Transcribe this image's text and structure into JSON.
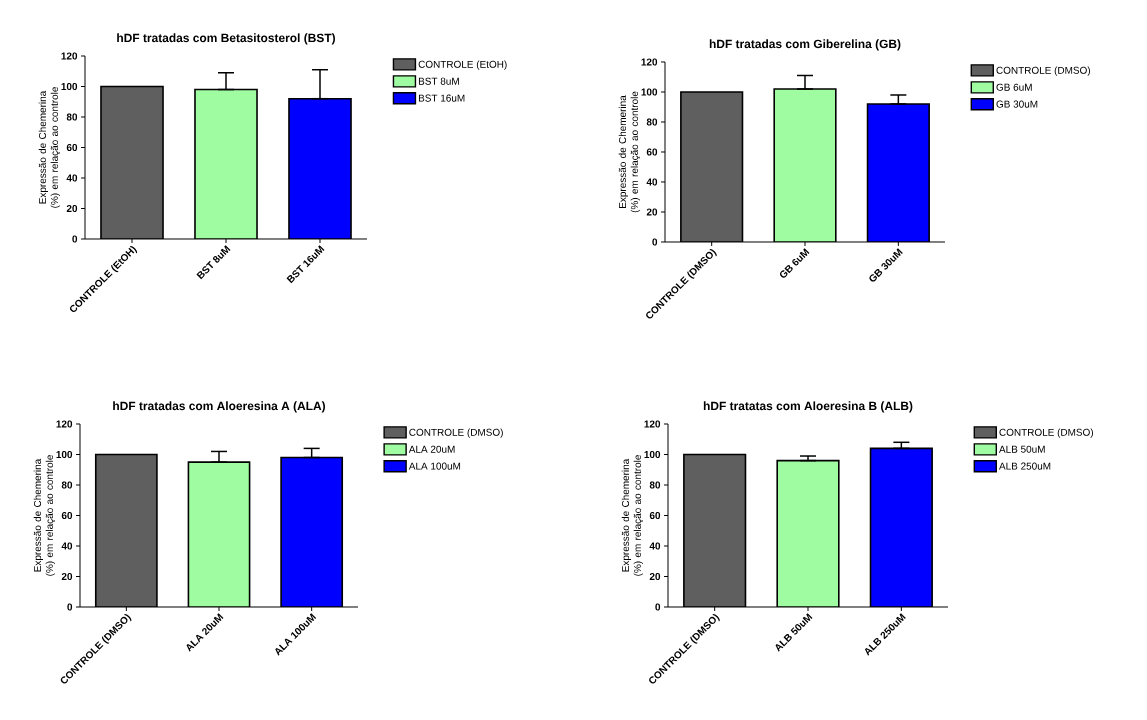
{
  "chart_data": [
    {
      "type": "bar",
      "title": "hDF tratadas com Betasitosterol (BST)",
      "ylabel": "Expressão de Chemerina (%) em relação ao controle",
      "categories": [
        "CONTROLE (EtOH)",
        "BST 8uM",
        "BST 16uM"
      ],
      "series": [
        {
          "name": "CONTROLE (EtOH)",
          "color": "#5f5f5f",
          "values": [
            100,
            null,
            null
          ]
        },
        {
          "name": "BST 8uM",
          "color": "#a0fca0",
          "values": [
            null,
            98,
            null
          ],
          "errors": [
            null,
            [
              98,
              109
            ],
            null
          ]
        },
        {
          "name": "BST 16uM",
          "color": "#0000ff",
          "values": [
            null,
            null,
            92
          ],
          "errors": [
            null,
            null,
            [
              92,
              111
            ]
          ]
        }
      ],
      "ylim": [
        0,
        120
      ],
      "yticks": [
        0,
        20,
        40,
        60,
        80,
        100,
        120
      ],
      "legend": "right"
    },
    {
      "type": "bar",
      "title": "hDF tratadas com Giberelina (GB)",
      "ylabel": "Expressão de Chemerina (%) em relação ao controle",
      "categories": [
        "CONTROLE (DMSO)",
        "GB 6uM",
        "GB 30uM"
      ],
      "series": [
        {
          "name": "CONTROLE (DMSO)",
          "color": "#5f5f5f",
          "values": [
            100,
            null,
            null
          ]
        },
        {
          "name": "GB 6uM",
          "color": "#a0fca0",
          "values": [
            null,
            102,
            null
          ],
          "errors": [
            null,
            [
              102,
              111
            ],
            null
          ]
        },
        {
          "name": "GB 30uM",
          "color": "#0000ff",
          "values": [
            null,
            null,
            92
          ],
          "errors": [
            null,
            null,
            [
              92,
              98
            ]
          ]
        }
      ],
      "ylim": [
        0,
        120
      ],
      "yticks": [
        0,
        20,
        40,
        60,
        80,
        100,
        120
      ],
      "legend": "right"
    },
    {
      "type": "bar",
      "title": "hDF tratadas com Aloeresina A (ALA)",
      "ylabel": "Expressão de Chemerina (%) em relação ao controle",
      "categories": [
        "CONTROLE (DMSO)",
        "ALA 20uM",
        "ALA 100uM"
      ],
      "series": [
        {
          "name": "CONTROLE (DMSO)",
          "color": "#5f5f5f",
          "values": [
            100,
            null,
            null
          ]
        },
        {
          "name": "ALA 20uM",
          "color": "#a0fca0",
          "values": [
            null,
            95,
            null
          ],
          "errors": [
            null,
            [
              95,
              102
            ],
            null
          ]
        },
        {
          "name": "ALA 100uM",
          "color": "#0000ff",
          "values": [
            null,
            null,
            98
          ],
          "errors": [
            null,
            null,
            [
              98,
              104
            ]
          ]
        }
      ],
      "ylim": [
        0,
        120
      ],
      "yticks": [
        0,
        20,
        40,
        60,
        80,
        100,
        120
      ],
      "legend": "right"
    },
    {
      "type": "bar",
      "title": "hDF tratatas com Aloeresina B (ALB)",
      "ylabel": "Expressão de Chemerina (%) em relação ao controle",
      "categories": [
        "CONTROLE (DMSO)",
        "ALB 50uM",
        "ALB 250uM"
      ],
      "series": [
        {
          "name": "CONTROLE (DMSO)",
          "color": "#5f5f5f",
          "values": [
            100,
            null,
            null
          ]
        },
        {
          "name": "ALB 50uM",
          "color": "#a0fca0",
          "values": [
            null,
            96,
            null
          ],
          "errors": [
            null,
            [
              96,
              99
            ],
            null
          ]
        },
        {
          "name": "ALB 250uM",
          "color": "#0000ff",
          "values": [
            null,
            null,
            104
          ],
          "errors": [
            null,
            null,
            [
              104,
              108
            ]
          ]
        }
      ],
      "ylim": [
        0,
        120
      ],
      "yticks": [
        0,
        20,
        40,
        60,
        80,
        100,
        120
      ],
      "legend": "right"
    }
  ]
}
